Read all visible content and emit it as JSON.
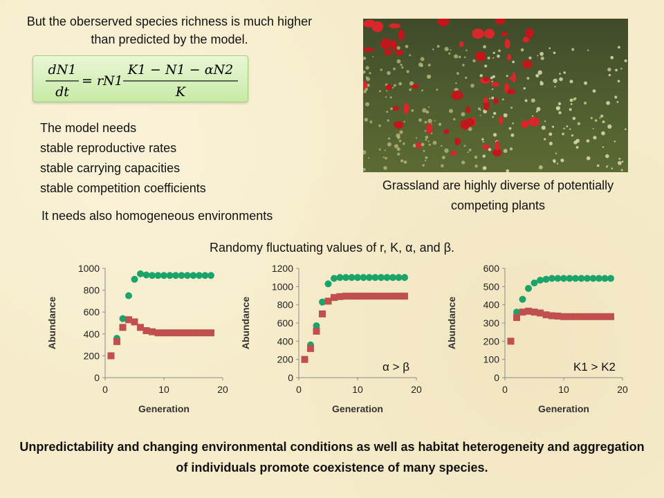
{
  "intro_text": "But the oberserved species richness is much higher than predicted by the model.",
  "formula": {
    "lhs_num": "dN1",
    "lhs_den": "dt",
    "eq": "= rN1",
    "rhs_num": "K1 − N1 − αN2",
    "rhs_den": "K"
  },
  "model_needs": [
    "The model needs",
    "stable reproductive rates",
    "stable carrying capacities",
    "stable competition coefficients"
  ],
  "homogeneous_text": "It needs also homogeneous environments",
  "photo_caption": "Grassland are highly diverse of potentially competing plants",
  "fluctuating_text": "Randomy fluctuating values of r, K, α, and β.",
  "conclusion_text": "Unpredictability and changing environmental conditions as well as habitat heterogeneity and aggregation of individuals  promote coexistence of many species.",
  "colors": {
    "green_series": "#1aa36b",
    "red_series": "#c0504d"
  },
  "chart_data": [
    {
      "type": "scatter",
      "xlabel": "Generation",
      "ylabel": "Abundance",
      "xlim": [
        0,
        20
      ],
      "ylim": [
        0,
        1000
      ],
      "xticks": [
        0,
        10,
        20
      ],
      "yticks": [
        0,
        200,
        400,
        600,
        800,
        1000
      ],
      "annotation": "",
      "series": [
        {
          "marker": "circle",
          "color": "#1aa36b",
          "x": [
            2,
            3,
            4,
            5,
            6,
            7,
            8,
            9,
            10,
            11,
            12,
            13,
            14,
            15,
            16,
            17,
            18
          ],
          "y": [
            360,
            540,
            750,
            900,
            950,
            940,
            935,
            935,
            935,
            935,
            935,
            935,
            935,
            935,
            935,
            935,
            935
          ]
        },
        {
          "marker": "square",
          "color": "#c0504d",
          "x": [
            1,
            2,
            3,
            4,
            5,
            6,
            7,
            8,
            9,
            10,
            11,
            12,
            13,
            14,
            15,
            16,
            17,
            18
          ],
          "y": [
            200,
            330,
            460,
            530,
            510,
            460,
            430,
            420,
            410,
            410,
            410,
            410,
            410,
            410,
            410,
            410,
            410,
            410
          ]
        }
      ]
    },
    {
      "type": "scatter",
      "xlabel": "Generation",
      "ylabel": "Abundance",
      "xlim": [
        0,
        20
      ],
      "ylim": [
        0,
        1200
      ],
      "xticks": [
        0,
        10,
        20
      ],
      "yticks": [
        0,
        200,
        400,
        600,
        800,
        1000,
        1200
      ],
      "annotation": "α > β",
      "series": [
        {
          "marker": "circle",
          "color": "#1aa36b",
          "x": [
            2,
            3,
            4,
            5,
            6,
            7,
            8,
            9,
            10,
            11,
            12,
            13,
            14,
            15,
            16,
            17,
            18
          ],
          "y": [
            360,
            570,
            830,
            1030,
            1090,
            1100,
            1100,
            1100,
            1100,
            1100,
            1100,
            1100,
            1100,
            1100,
            1100,
            1100,
            1100
          ]
        },
        {
          "marker": "square",
          "color": "#c0504d",
          "x": [
            1,
            2,
            3,
            4,
            5,
            6,
            7,
            8,
            9,
            10,
            11,
            12,
            13,
            14,
            15,
            16,
            17,
            18
          ],
          "y": [
            200,
            320,
            510,
            700,
            840,
            880,
            890,
            895,
            895,
            895,
            895,
            895,
            895,
            895,
            895,
            895,
            895,
            895
          ]
        }
      ]
    },
    {
      "type": "scatter",
      "xlabel": "Generation",
      "ylabel": "Abundance",
      "xlim": [
        0,
        20
      ],
      "ylim": [
        0,
        600
      ],
      "xticks": [
        0,
        10,
        20
      ],
      "yticks": [
        0,
        100,
        200,
        300,
        400,
        500,
        600
      ],
      "annotation": "K1 > K2",
      "series": [
        {
          "marker": "circle",
          "color": "#1aa36b",
          "x": [
            2,
            3,
            4,
            5,
            6,
            7,
            8,
            9,
            10,
            11,
            12,
            13,
            14,
            15,
            16,
            17,
            18
          ],
          "y": [
            360,
            430,
            490,
            520,
            535,
            540,
            545,
            545,
            545,
            545,
            545,
            545,
            545,
            545,
            545,
            545,
            545
          ]
        },
        {
          "marker": "square",
          "color": "#c0504d",
          "x": [
            1,
            2,
            3,
            4,
            5,
            6,
            7,
            8,
            9,
            10,
            11,
            12,
            13,
            14,
            15,
            16,
            17,
            18
          ],
          "y": [
            200,
            330,
            360,
            365,
            360,
            355,
            345,
            340,
            338,
            335,
            335,
            335,
            335,
            335,
            335,
            335,
            335,
            335
          ]
        }
      ]
    }
  ]
}
